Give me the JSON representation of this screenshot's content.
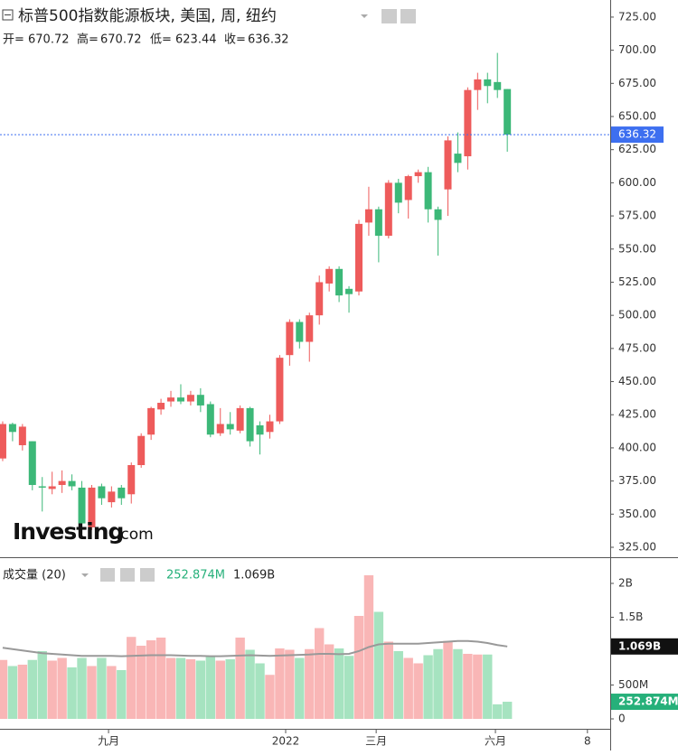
{
  "title": "标普500指数能源板块, 美国, 周, 纽约",
  "ohlc_labels": [
    "开=",
    "高=",
    "低=",
    "收="
  ],
  "ohlc": [
    670.72,
    670.72,
    623.44,
    636.32
  ],
  "logo": [
    "Investing",
    ".com"
  ],
  "chart_data": [
    {
      "type": "candlestick",
      "categories": [
        null,
        null,
        null,
        null,
        null,
        null,
        null,
        null,
        null,
        null,
        null,
        null,
        null,
        null,
        null,
        null,
        null,
        null,
        null,
        null,
        null,
        null,
        null,
        null,
        null,
        null,
        null,
        null,
        null,
        null,
        null,
        null,
        null,
        null,
        null,
        null,
        null,
        null,
        null,
        null,
        null,
        null,
        null,
        null,
        null,
        null,
        null,
        null,
        null,
        null,
        null,
        null
      ],
      "open": [
        392,
        418,
        402,
        405,
        371,
        369,
        372,
        375,
        370,
        340,
        371,
        359,
        370,
        365,
        387,
        410,
        429,
        435,
        438,
        435,
        440,
        433,
        411,
        418,
        413,
        430,
        417,
        412,
        420,
        470,
        495,
        480,
        500,
        524,
        535,
        520,
        518,
        570,
        580,
        560,
        600,
        587,
        605,
        608,
        580,
        595,
        622,
        620,
        670,
        678,
        676,
        670.72
      ],
      "high": [
        420,
        419,
        418,
        405,
        378,
        382,
        383,
        380,
        375,
        372,
        373,
        371,
        372,
        389,
        411,
        431,
        437,
        443,
        448,
        443,
        445,
        435,
        430,
        427,
        432,
        431,
        420,
        425,
        470,
        497,
        497,
        502,
        530,
        537,
        537,
        522,
        572,
        597,
        582,
        602,
        603,
        606,
        610,
        612,
        582,
        635,
        638,
        672,
        683,
        683,
        698,
        670.72
      ],
      "low": [
        390,
        405,
        398,
        368,
        352,
        365,
        366,
        368,
        340,
        338,
        357,
        355,
        357,
        358,
        385,
        406,
        425,
        431,
        433,
        432,
        427,
        408,
        409,
        410,
        411,
        401,
        395,
        407,
        418,
        462,
        475,
        465,
        493,
        518,
        510,
        502,
        515,
        560,
        540,
        558,
        577,
        573,
        600,
        570,
        545,
        575,
        608,
        610,
        655,
        660,
        664,
        623.44
      ],
      "close": [
        418,
        412,
        416,
        372,
        370,
        371,
        375,
        371,
        343,
        370,
        362,
        367,
        362,
        387,
        409,
        430,
        434,
        438,
        435,
        440,
        432,
        410,
        418,
        414,
        430,
        405,
        410,
        420,
        468,
        495,
        480,
        500,
        525,
        535,
        515,
        516,
        569,
        580,
        560,
        600,
        585,
        605,
        608,
        580,
        572,
        632,
        615,
        670,
        678,
        673,
        670,
        636.32
      ],
      "up_color": "#ee5b5b",
      "down_color": "#3cb878",
      "xlim": [
        -0.27,
        61.4
      ],
      "xticks": [
        {
          "value": 10.7,
          "label": "九月"
        },
        {
          "value": 28.6,
          "label": "2022"
        },
        {
          "value": 37.75,
          "label": "三月"
        },
        {
          "value": 49.8,
          "label": "六月"
        },
        {
          "value": 59.1,
          "label": "8"
        }
      ],
      "ylim": [
        317.5,
        737.9
      ],
      "yticks": [
        {
          "value": 325,
          "label": "325.00"
        },
        {
          "value": 350,
          "label": "350.00"
        },
        {
          "value": 375,
          "label": "375.00"
        },
        {
          "value": 400,
          "label": "400.00"
        },
        {
          "value": 425,
          "label": "425.00"
        },
        {
          "value": 450,
          "label": "450.00"
        },
        {
          "value": 475,
          "label": "475.00"
        },
        {
          "value": 500,
          "label": "500.00"
        },
        {
          "value": 525,
          "label": "525.00"
        },
        {
          "value": 550,
          "label": "550.00"
        },
        {
          "value": 575,
          "label": "575.00"
        },
        {
          "value": 600,
          "label": "600.00"
        },
        {
          "value": 625,
          "label": "625.00"
        },
        {
          "value": 650,
          "label": "650.00"
        },
        {
          "value": 675,
          "label": "675.00"
        },
        {
          "value": 700,
          "label": "700.00"
        },
        {
          "value": 725,
          "label": "725.00"
        }
      ],
      "price_line": 636.32,
      "price_line_color": "#3d6ff0"
    },
    {
      "type": "bar",
      "title": "成交量 (20)",
      "values": [
        870,
        780,
        800,
        870,
        1000,
        860,
        900,
        760,
        900,
        780,
        900,
        780,
        720,
        1210,
        1080,
        1160,
        1200,
        900,
        900,
        880,
        860,
        930,
        860,
        880,
        1200,
        1020,
        820,
        650,
        1040,
        1020,
        900,
        1030,
        1340,
        1100,
        1040,
        930,
        1520,
        2120,
        1580,
        1140,
        1000,
        900,
        820,
        940,
        1030,
        1150,
        1030,
        960,
        950,
        950,
        215,
        252.874
      ],
      "up_color": "#f9b6b6",
      "down_color": "#a6e3c0",
      "ma": {
        "values": [
          1050,
          1030,
          1010,
          990,
          970,
          960,
          950,
          940,
          930,
          930,
          930,
          930,
          925,
          930,
          935,
          940,
          940,
          940,
          935,
          930,
          930,
          925,
          925,
          930,
          935,
          940,
          935,
          930,
          935,
          940,
          945,
          950,
          960,
          960,
          955,
          960,
          1000,
          1060,
          1100,
          1110,
          1110,
          1110,
          1110,
          1120,
          1130,
          1140,
          1150,
          1150,
          1140,
          1120,
          1090,
          1069
        ],
        "color": "#999999"
      },
      "ylim": [
        -160,
        2373
      ],
      "yticks": [
        0,
        {
          "value": 500,
          "label": "500M"
        },
        {
          "value": 1000,
          "label": "1B"
        },
        {
          "value": 1500,
          "label": "1.5B"
        },
        {
          "value": 2000,
          "label": "2B"
        }
      ],
      "current": [
        {
          "value": 252.874,
          "label": "252.874M",
          "color": "#26b07a"
        },
        {
          "value": 1069,
          "label": "1.069B",
          "color": "#111111"
        }
      ]
    }
  ]
}
